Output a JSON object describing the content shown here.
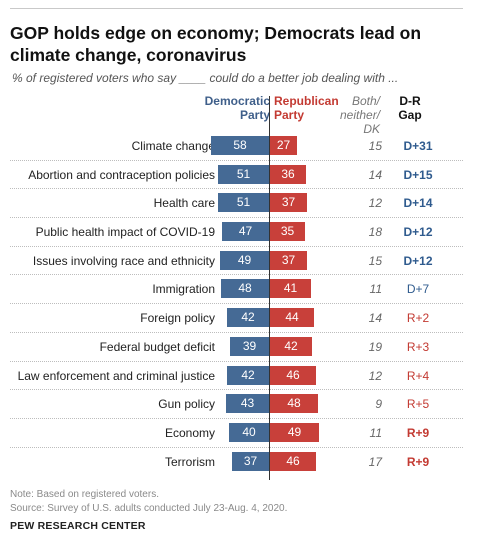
{
  "title": "GOP holds edge on economy; Democrats lead on climate change, coronavirus",
  "subtitle": "% of registered voters who say ____ could do a better job dealing with ...",
  "headers": {
    "dem": [
      "Democratic",
      "Party"
    ],
    "rep": [
      "Republican",
      "Party"
    ],
    "both": [
      "Both/",
      "neither/",
      "DK"
    ],
    "gap": [
      "D-R",
      "Gap"
    ]
  },
  "colors": {
    "dem": "#456a95",
    "rep": "#c8403a",
    "gap_dem": "#2f5b8e",
    "gap_rep": "#c33a32"
  },
  "chart_data": {
    "type": "bar",
    "categories": [
      "Climate change",
      "Abortion and contraception policies",
      "Health care",
      "Public health impact of COVID-19",
      "Issues involving race and ethnicity",
      "Immigration",
      "Foreign policy",
      "Federal budget deficit",
      "Law enforcement and criminal justice",
      "Gun policy",
      "Economy",
      "Terrorism"
    ],
    "series": [
      {
        "name": "Democratic Party",
        "values": [
          58,
          51,
          51,
          47,
          49,
          48,
          42,
          39,
          42,
          43,
          40,
          37
        ]
      },
      {
        "name": "Republican Party",
        "values": [
          27,
          36,
          37,
          35,
          37,
          41,
          44,
          42,
          46,
          48,
          49,
          46
        ]
      },
      {
        "name": "Both/neither/DK",
        "values": [
          15,
          14,
          12,
          18,
          15,
          11,
          14,
          19,
          12,
          9,
          11,
          17
        ]
      }
    ],
    "gap": [
      "D+31",
      "D+15",
      "D+14",
      "D+12",
      "D+12",
      "D+7",
      "R+2",
      "R+3",
      "R+4",
      "R+5",
      "R+9",
      "R+9"
    ],
    "gap_bold": [
      true,
      true,
      true,
      true,
      true,
      false,
      false,
      false,
      false,
      false,
      true,
      true
    ]
  },
  "notes": [
    "Note: Based on registered voters.",
    "Source: Survey of U.S. adults conducted July 23-Aug. 4, 2020."
  ],
  "org": "PEW RESEARCH CENTER"
}
